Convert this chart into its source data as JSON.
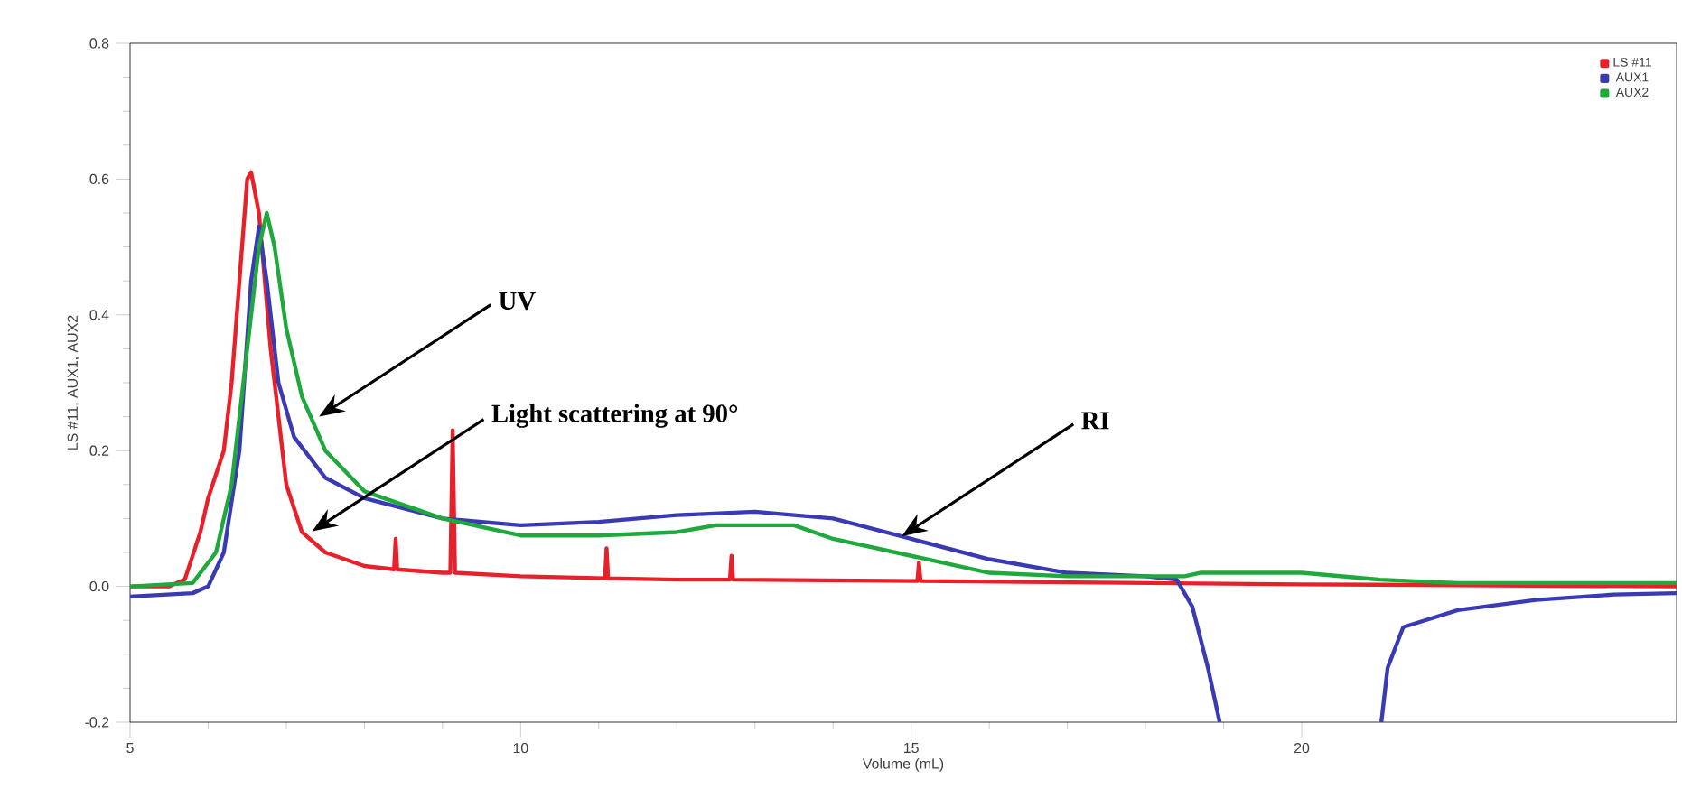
{
  "chart_data": {
    "type": "line",
    "xlabel": "Volume (mL)",
    "ylabel": "LS #11, AUX1, AUX2",
    "xlim": [
      5,
      24.8
    ],
    "ylim": [
      -0.2,
      0.8
    ],
    "xticks": [
      5,
      10,
      15,
      20
    ],
    "yticks": [
      {
        "value": -0.2,
        "label": "-0.2"
      },
      {
        "value": 0,
        "label": "0.0"
      },
      {
        "value": 0.2,
        "label": "0.2"
      },
      {
        "value": 0.4,
        "label": "0.4"
      },
      {
        "value": 0.6,
        "label": "0.6"
      },
      {
        "value": 0.8,
        "label": "0.8"
      }
    ],
    "legend": "top right",
    "grid": false,
    "series": [
      {
        "name": "LS #11",
        "color": "#e8202a",
        "x": [
          5,
          5.5,
          5.7,
          5.9,
          6.0,
          6.2,
          6.3,
          6.4,
          6.5,
          6.55,
          6.65,
          6.8,
          6.9,
          7.0,
          7.2,
          7.5,
          8,
          8.38,
          8.4,
          8.42,
          9,
          9.1,
          9.13,
          9.16,
          10,
          11.08,
          11.1,
          11.12,
          12,
          12.68,
          12.7,
          12.72,
          15.08,
          15.1,
          15.12,
          20,
          24.8
        ],
        "values": [
          0.0,
          0.0,
          0.01,
          0.08,
          0.13,
          0.2,
          0.3,
          0.45,
          0.6,
          0.61,
          0.55,
          0.35,
          0.25,
          0.15,
          0.08,
          0.05,
          0.03,
          0.025,
          0.07,
          0.025,
          0.02,
          0.02,
          0.23,
          0.02,
          0.015,
          0.012,
          0.056,
          0.012,
          0.01,
          0.01,
          0.045,
          0.01,
          0.008,
          0.035,
          0.008,
          0.003,
          0.0
        ]
      },
      {
        "name": "AUX1",
        "color": "#3a3ab4",
        "x": [
          5,
          5.8,
          6.0,
          6.2,
          6.4,
          6.55,
          6.65,
          6.75,
          6.9,
          7.1,
          7.5,
          8,
          9,
          10,
          11,
          12,
          13,
          14,
          15,
          16,
          17,
          18,
          18.4,
          18.6,
          18.8,
          18.95,
          20,
          21.02,
          21.1,
          21.3,
          22,
          23,
          24,
          24.8
        ],
        "values": [
          -0.015,
          -0.01,
          0.0,
          0.05,
          0.2,
          0.45,
          0.53,
          0.45,
          0.3,
          0.22,
          0.16,
          0.13,
          0.1,
          0.09,
          0.095,
          0.105,
          0.11,
          0.1,
          0.07,
          0.04,
          0.02,
          0.015,
          0.01,
          -0.03,
          -0.12,
          -0.2,
          null,
          -0.2,
          -0.12,
          -0.06,
          -0.035,
          -0.02,
          -0.012,
          -0.01
        ]
      },
      {
        "name": "AUX2",
        "color": "#1fa83c",
        "x": [
          5,
          5.8,
          6.1,
          6.3,
          6.5,
          6.65,
          6.75,
          6.85,
          7.0,
          7.2,
          7.5,
          8,
          9,
          10,
          11,
          12,
          12.5,
          13.5,
          14,
          15,
          16,
          17,
          18.5,
          18.7,
          20,
          21,
          22,
          24.8
        ],
        "values": [
          0.0,
          0.005,
          0.05,
          0.15,
          0.35,
          0.5,
          0.55,
          0.5,
          0.38,
          0.28,
          0.2,
          0.14,
          0.1,
          0.075,
          0.075,
          0.08,
          0.09,
          0.09,
          0.07,
          0.045,
          0.02,
          0.015,
          0.015,
          0.02,
          0.02,
          0.01,
          0.005,
          0.005
        ]
      }
    ],
    "annotations": [
      {
        "text": "UV",
        "x": 7.42,
        "y": 0.25
      },
      {
        "text": "Light scattering at 90°",
        "x": 7.33,
        "y": 0.081
      },
      {
        "text": "RI",
        "x": 14.88,
        "y": 0.074
      }
    ]
  }
}
